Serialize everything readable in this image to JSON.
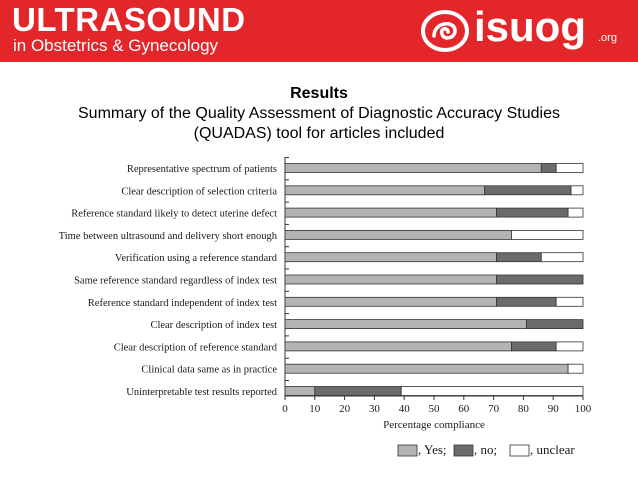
{
  "header": {
    "title": "ULTRASOUND",
    "subtitle": "in Obstetrics & Gynecology",
    "logo_text": "isuog",
    "logo_suffix": ".org",
    "logo_icon": "isuog-logo-icon",
    "banner_color": "#e3262a"
  },
  "slide": {
    "title": "Results",
    "subtitle": "Summary of the Quality Assessment of Diagnostic Accuracy Studies (QUADAS) tool for articles included"
  },
  "chart_data": {
    "type": "bar",
    "orientation": "horizontal",
    "stacked": true,
    "categories": [
      "Representative spectrum of patients",
      "Clear description of selection criteria",
      "Reference standard likely to detect uterine defect",
      "Time between ultrasound and delivery short enough",
      "Verification using a reference standard",
      "Same reference standard regardless of index test",
      "Reference standard independent of index test",
      "Clear description of index test",
      "Clear description of reference standard",
      "Clinical data same as in practice",
      "Uninterpretable test results reported"
    ],
    "series": [
      {
        "name": "Yes",
        "color": "#b3b3b3",
        "values": [
          86,
          67,
          71,
          76,
          71,
          71,
          71,
          81,
          76,
          95,
          10
        ]
      },
      {
        "name": "no",
        "color": "#6b6b6b",
        "values": [
          5,
          29,
          24,
          0,
          15,
          29,
          20,
          19,
          15,
          0,
          29
        ]
      },
      {
        "name": "unclear",
        "color": "#ffffff",
        "values": [
          9,
          4,
          5,
          24,
          14,
          0,
          9,
          0,
          9,
          5,
          61
        ]
      }
    ],
    "xlabel": "Percentage compliance",
    "xlim": [
      0,
      100
    ],
    "xticks": [
      "0",
      "10",
      "20",
      "30",
      "40",
      "50",
      "60",
      "70",
      "80",
      "90",
      "100"
    ],
    "legend": {
      "position": "bottom-right",
      "items": [
        ", Yes;",
        ", no;",
        ", unclear"
      ]
    },
    "grid": false
  }
}
